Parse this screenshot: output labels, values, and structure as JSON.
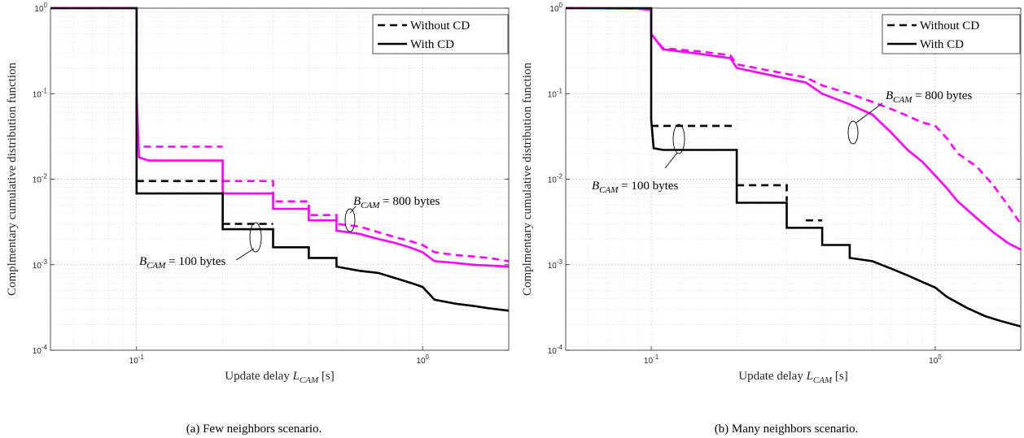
{
  "chart_data": [
    {
      "type": "line",
      "caption": "(a) Few neighbors scenario.",
      "xlabel": "Update delay L_CAM [s]",
      "ylabel": "Complmentary cumulative distribution function",
      "xscale": "log",
      "yscale": "log",
      "xlim": [
        0.05,
        2
      ],
      "ylim": [
        0.0001,
        1
      ],
      "xticks": [
        0.1,
        1
      ],
      "xtick_labels": [
        "10^-1",
        "10^0"
      ],
      "yticks": [
        0.0001,
        0.001,
        0.01,
        0.1,
        1
      ],
      "ytick_labels": [
        "10^-4",
        "10^-3",
        "10^-2",
        "10^-1",
        "10^0"
      ],
      "grid": true,
      "legend_position": "top-right",
      "legend": [
        {
          "label": "Without CD",
          "style": "dashed"
        },
        {
          "label": "With CD",
          "style": "solid"
        }
      ],
      "annotations": [
        "B_CAM = 800 bytes",
        "B_CAM = 100 bytes"
      ],
      "series": [
        {
          "payload": "800 bytes",
          "cd": "without",
          "color": "#ff00ff",
          "style": "dashed",
          "points": [
            [
              0.05,
              1
            ],
            [
              0.1,
              1
            ],
            [
              0.1,
              0.024
            ],
            [
              0.2,
              0.024
            ]
          ]
        },
        {
          "payload": "800 bytes",
          "cd": "without",
          "color": "#ff00ff",
          "style": "dashed",
          "points": [
            [
              0.2,
              0.0095
            ],
            [
              0.3,
              0.0095
            ],
            [
              0.3,
              0.0055
            ],
            [
              0.4,
              0.0055
            ],
            [
              0.4,
              0.0038
            ],
            [
              0.5,
              0.0038
            ],
            [
              0.5,
              0.003
            ],
            [
              0.6,
              0.0028
            ],
            [
              0.7,
              0.0024
            ],
            [
              0.8,
              0.0021
            ],
            [
              0.9,
              0.0019
            ],
            [
              1.0,
              0.0017
            ],
            [
              1.1,
              0.0014
            ],
            [
              1.3,
              0.0013
            ],
            [
              1.5,
              0.00125
            ],
            [
              1.7,
              0.0012
            ],
            [
              2.0,
              0.0011
            ]
          ]
        },
        {
          "payload": "800 bytes",
          "cd": "with",
          "color": "#ff00ff",
          "style": "solid",
          "points": [
            [
              0.05,
              1
            ],
            [
              0.1,
              1
            ],
            [
              0.1,
              0.1
            ],
            [
              0.102,
              0.018
            ],
            [
              0.11,
              0.0165
            ],
            [
              0.2,
              0.0165
            ],
            [
              0.2,
              0.0068
            ],
            [
              0.3,
              0.0068
            ],
            [
              0.3,
              0.0045
            ],
            [
              0.4,
              0.0045
            ],
            [
              0.4,
              0.0033
            ],
            [
              0.5,
              0.0033
            ],
            [
              0.5,
              0.0025
            ],
            [
              0.6,
              0.0023
            ],
            [
              0.7,
              0.002
            ],
            [
              0.8,
              0.0018
            ],
            [
              0.9,
              0.0016
            ],
            [
              1.0,
              0.0014
            ],
            [
              1.1,
              0.0011
            ],
            [
              1.3,
              0.00105
            ],
            [
              1.5,
              0.001
            ],
            [
              2.0,
              0.00095
            ]
          ]
        },
        {
          "payload": "100 bytes",
          "cd": "without",
          "color": "#000000",
          "style": "dashed",
          "points": [
            [
              0.1,
              0.0095
            ],
            [
              0.2,
              0.0095
            ]
          ]
        },
        {
          "payload": "100 bytes",
          "cd": "without",
          "color": "#000000",
          "style": "dashed",
          "points": [
            [
              0.2,
              0.003
            ],
            [
              0.3,
              0.003
            ]
          ]
        },
        {
          "payload": "100 bytes",
          "cd": "with",
          "color": "#000000",
          "style": "solid",
          "points": [
            [
              0.05,
              1
            ],
            [
              0.1,
              1
            ],
            [
              0.1,
              0.03
            ],
            [
              0.1,
              0.0068
            ],
            [
              0.2,
              0.0068
            ],
            [
              0.2,
              0.0026
            ],
            [
              0.3,
              0.0026
            ],
            [
              0.3,
              0.0016
            ],
            [
              0.4,
              0.0016
            ],
            [
              0.4,
              0.0012
            ],
            [
              0.5,
              0.0012
            ],
            [
              0.5,
              0.00095
            ],
            [
              0.6,
              0.00085
            ],
            [
              0.7,
              0.0008
            ],
            [
              0.8,
              0.0007
            ],
            [
              0.9,
              0.00062
            ],
            [
              1.0,
              0.00055
            ],
            [
              1.1,
              0.00039
            ],
            [
              1.3,
              0.00035
            ],
            [
              1.5,
              0.00033
            ],
            [
              1.7,
              0.00031
            ],
            [
              2.0,
              0.00029
            ]
          ]
        }
      ]
    },
    {
      "type": "line",
      "caption": "(b) Many neighbors scenario.",
      "xlabel": "Update delay L_CAM [s]",
      "ylabel": "Complmentary cumulative distribution function",
      "xscale": "log",
      "yscale": "log",
      "xlim": [
        0.05,
        2
      ],
      "ylim": [
        0.0001,
        1
      ],
      "xticks": [
        0.1,
        1
      ],
      "xtick_labels": [
        "10^-1",
        "10^0"
      ],
      "yticks": [
        0.0001,
        0.001,
        0.01,
        0.1,
        1
      ],
      "ytick_labels": [
        "10^-4",
        "10^-3",
        "10^-2",
        "10^-1",
        "10^0"
      ],
      "grid": true,
      "legend_position": "top-right",
      "legend": [
        {
          "label": "Without CD",
          "style": "dashed"
        },
        {
          "label": "With CD",
          "style": "solid"
        }
      ],
      "annotations": [
        "B_CAM = 800 bytes",
        "B_CAM = 100 bytes"
      ],
      "series": [
        {
          "payload": "800 bytes",
          "cd": "without",
          "color": "#ff00ff",
          "style": "dashed",
          "points": [
            [
              0.05,
              1
            ],
            [
              0.09,
              0.99
            ],
            [
              0.1,
              0.95
            ],
            [
              0.1,
              0.5
            ],
            [
              0.11,
              0.34
            ],
            [
              0.15,
              0.31
            ],
            [
              0.19,
              0.28
            ],
            [
              0.2,
              0.22
            ],
            [
              0.3,
              0.17
            ],
            [
              0.35,
              0.155
            ],
            [
              0.4,
              0.125
            ],
            [
              0.5,
              0.1
            ],
            [
              0.6,
              0.08
            ],
            [
              0.7,
              0.066
            ],
            [
              0.8,
              0.055
            ],
            [
              0.9,
              0.046
            ],
            [
              1.0,
              0.042
            ],
            [
              1.1,
              0.03
            ],
            [
              1.2,
              0.02
            ],
            [
              1.4,
              0.014
            ],
            [
              1.6,
              0.0085
            ],
            [
              1.8,
              0.005
            ],
            [
              2.0,
              0.003
            ]
          ]
        },
        {
          "payload": "800 bytes",
          "cd": "with",
          "color": "#ff00ff",
          "style": "solid",
          "points": [
            [
              0.05,
              1
            ],
            [
              0.09,
              0.99
            ],
            [
              0.1,
              0.95
            ],
            [
              0.1,
              0.5
            ],
            [
              0.11,
              0.33
            ],
            [
              0.15,
              0.29
            ],
            [
              0.19,
              0.26
            ],
            [
              0.2,
              0.2
            ],
            [
              0.3,
              0.15
            ],
            [
              0.35,
              0.135
            ],
            [
              0.4,
              0.1
            ],
            [
              0.5,
              0.075
            ],
            [
              0.6,
              0.057
            ],
            [
              0.7,
              0.035
            ],
            [
              0.8,
              0.022
            ],
            [
              0.9,
              0.016
            ],
            [
              1.0,
              0.011
            ],
            [
              1.1,
              0.0078
            ],
            [
              1.2,
              0.0055
            ],
            [
              1.4,
              0.0035
            ],
            [
              1.6,
              0.0024
            ],
            [
              1.8,
              0.0018
            ],
            [
              2.0,
              0.0015
            ]
          ]
        },
        {
          "payload": "100 bytes",
          "cd": "without",
          "color": "#000000",
          "style": "dashed",
          "points": [
            [
              0.1,
              0.042
            ],
            [
              0.2,
              0.042
            ]
          ]
        },
        {
          "payload": "100 bytes",
          "cd": "without",
          "color": "#000000",
          "style": "dashed",
          "points": [
            [
              0.2,
              0.0085
            ],
            [
              0.3,
              0.0085
            ],
            [
              0.3,
              0.0055
            ]
          ]
        },
        {
          "payload": "100 bytes",
          "cd": "without",
          "color": "#000000",
          "style": "dashed",
          "points": [
            [
              0.35,
              0.0033
            ],
            [
              0.4,
              0.0033
            ]
          ]
        },
        {
          "payload": "100 bytes",
          "cd": "with",
          "color": "#000000",
          "style": "solid",
          "points": [
            [
              0.05,
              1
            ],
            [
              0.1,
              1
            ],
            [
              0.1,
              0.05
            ],
            [
              0.102,
              0.023
            ],
            [
              0.11,
              0.022
            ],
            [
              0.2,
              0.022
            ],
            [
              0.2,
              0.0053
            ],
            [
              0.3,
              0.0053
            ],
            [
              0.3,
              0.0027
            ],
            [
              0.4,
              0.0027
            ],
            [
              0.4,
              0.0017
            ],
            [
              0.5,
              0.0017
            ],
            [
              0.5,
              0.0012
            ],
            [
              0.6,
              0.0011
            ],
            [
              0.7,
              0.0009
            ],
            [
              0.8,
              0.00075
            ],
            [
              0.9,
              0.00063
            ],
            [
              1.0,
              0.00054
            ],
            [
              1.1,
              0.00042
            ],
            [
              1.3,
              0.00031
            ],
            [
              1.5,
              0.00025
            ],
            [
              1.7,
              0.00022
            ],
            [
              2.0,
              0.00019
            ]
          ]
        }
      ]
    }
  ]
}
